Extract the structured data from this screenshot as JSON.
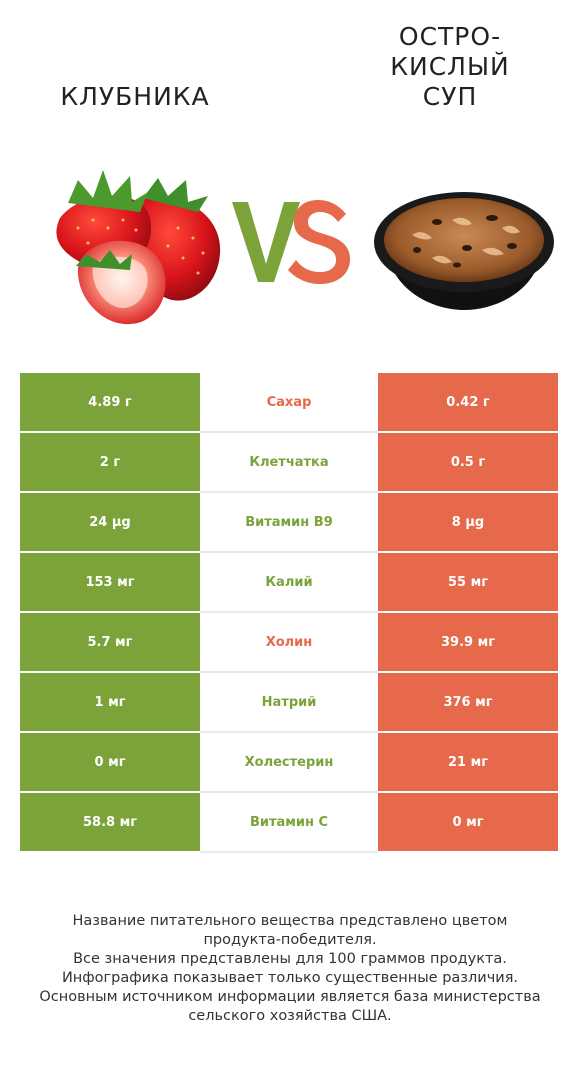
{
  "left_food": {
    "name": "клубника"
  },
  "right_food": {
    "name_lines": [
      "остро-",
      "кислый",
      "суп"
    ]
  },
  "vs": {
    "v": "V",
    "s": "S"
  },
  "colors": {
    "left_winner": "#7ba33a",
    "right_winner": "#e5694a"
  },
  "rows": [
    {
      "left": "4.89 г",
      "nutrient": "Сахар",
      "right": "0.42 г",
      "winner": "right"
    },
    {
      "left": "2 г",
      "nutrient": "Клетчатка",
      "right": "0.5 г",
      "winner": "left"
    },
    {
      "left": "24 µg",
      "nutrient": "Витамин B9",
      "right": "8 µg",
      "winner": "left"
    },
    {
      "left": "153 мг",
      "nutrient": "Калий",
      "right": "55 мг",
      "winner": "left"
    },
    {
      "left": "5.7 мг",
      "nutrient": "Холин",
      "right": "39.9 мг",
      "winner": "right"
    },
    {
      "left": "1 мг",
      "nutrient": "Натрий",
      "right": "376 мг",
      "winner": "left"
    },
    {
      "left": "0 мг",
      "nutrient": "Холестерин",
      "right": "21 мг",
      "winner": "left"
    },
    {
      "left": "58.8 мг",
      "nutrient": "Витамин C",
      "right": "0 мг",
      "winner": "left"
    }
  ],
  "footer": [
    "Название питательного вещества представлено цветом",
    "продукта-победителя.",
    "Все значения представлены для 100 граммов продукта.",
    "Инфографика показывает только существенные различия.",
    "Основным источником информации является база министерства",
    "сельского хозяйства США."
  ]
}
